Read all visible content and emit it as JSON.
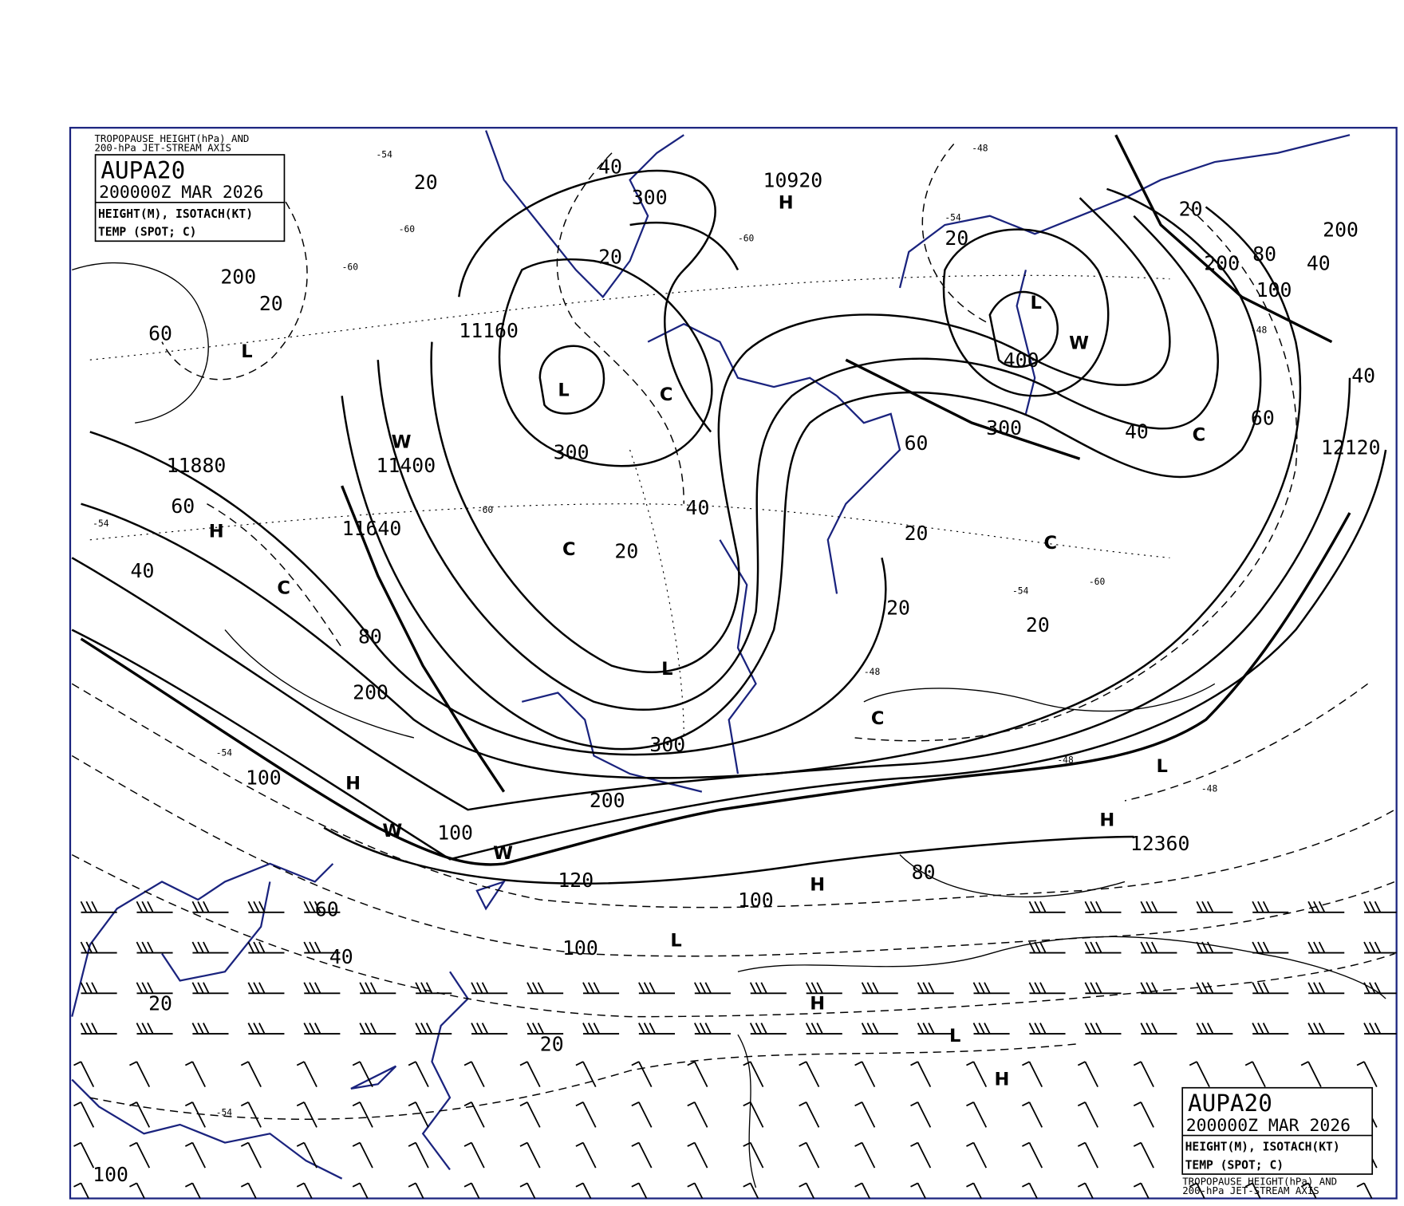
{
  "product": {
    "id": "AUPA20",
    "valid_time": "200000Z MAR 2026",
    "line1": "HEIGHT(M), ISOTACH(KT)",
    "line2": "TEMP (SPOT; C)",
    "caption_line1": "TROPOPAUSE HEIGHT(hPa) AND",
    "caption_line2": "200-hPa JET-STREAM AXIS"
  },
  "colors": {
    "frame": "#1a237e",
    "coastline": "#1a237e",
    "contours": "#000000"
  },
  "height_labels": [
    "10920",
    "11160",
    "11400",
    "11640",
    "11880",
    "12120",
    "12360"
  ],
  "isotach_labels": [
    "40",
    "20",
    "20",
    "20",
    "60",
    "80",
    "100",
    "120",
    "100",
    "100",
    "80",
    "60",
    "40",
    "20",
    "20",
    "40",
    "60",
    "80",
    "100",
    "40",
    "20",
    "20",
    "20",
    "60",
    "40",
    "40",
    "60",
    "20",
    "20",
    "40",
    "20"
  ],
  "tropopause_labels": [
    "200",
    "300",
    "300",
    "400",
    "300",
    "200",
    "200",
    "300",
    "200",
    "200",
    "100",
    "100"
  ],
  "centers": [
    "H",
    "L",
    "L",
    "C",
    "W",
    "H",
    "C",
    "L",
    "H",
    "W",
    "C",
    "L",
    "C",
    "C",
    "H",
    "L",
    "H",
    "H",
    "L",
    "H",
    "W",
    "W",
    "L",
    "C"
  ],
  "spot_temps": [
    "-54",
    "-60",
    "-60",
    "-54",
    "-48",
    "-48",
    "-54",
    "-60",
    "-48",
    "-54",
    "-60",
    "-54",
    "-48",
    "-54",
    "-60",
    "-48"
  ]
}
